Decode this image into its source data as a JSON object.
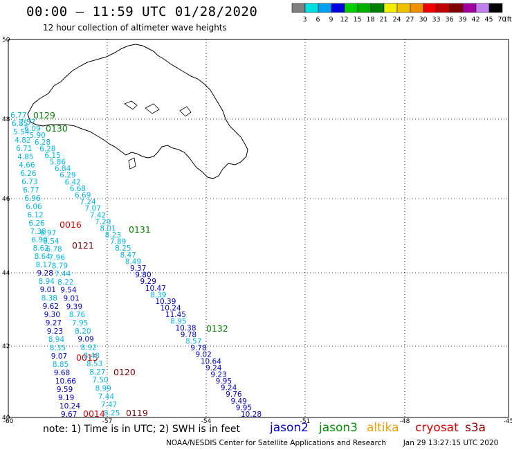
{
  "header": {
    "title": "00:00 – 11:59 UTC 01/28/2020",
    "subtitle": "12 hour collection of altimeter wave heights"
  },
  "legend": {
    "unit": "(ft)",
    "swatches": [
      {
        "label": "3",
        "color": "#808080"
      },
      {
        "label": "6",
        "color": "#00e0e0"
      },
      {
        "label": "9",
        "color": "#00a0f0"
      },
      {
        "label": "12",
        "color": "#0000e0"
      },
      {
        "label": "15",
        "color": "#00d000"
      },
      {
        "label": "18",
        "color": "#00b000"
      },
      {
        "label": "21",
        "color": "#008000"
      },
      {
        "label": "24",
        "color": "#f0f000"
      },
      {
        "label": "27",
        "color": "#f0c000"
      },
      {
        "label": "30",
        "color": "#f09000"
      },
      {
        "label": "33",
        "color": "#f00000"
      },
      {
        "label": "36",
        "color": "#c00000"
      },
      {
        "label": "39",
        "color": "#800000"
      },
      {
        "label": "42",
        "color": "#a000a0"
      },
      {
        "label": "45",
        "color": "#c080f0"
      },
      {
        "label": "70",
        "color": "#000000"
      }
    ]
  },
  "axes": {
    "lat_labels": [
      "50",
      "48",
      "46",
      "44",
      "42",
      "40"
    ],
    "lon_labels": [
      "-60",
      "-57",
      "-54",
      "-51",
      "-48",
      "-45"
    ]
  },
  "passes": [
    {
      "label": "0129",
      "color": "#008000"
    },
    {
      "label": "0130",
      "color": "#008000"
    },
    {
      "label": "0131",
      "color": "#008000"
    },
    {
      "label": "0132",
      "color": "#008000"
    },
    {
      "label": "0016",
      "color": "#e00000"
    },
    {
      "label": "0121",
      "color": "#800000"
    },
    {
      "label": "0015",
      "color": "#e00000"
    },
    {
      "label": "0120",
      "color": "#800000"
    },
    {
      "label": "0014",
      "color": "#e00000"
    },
    {
      "label": "0119",
      "color": "#800000"
    }
  ],
  "tracks": [
    {
      "name": "track-a",
      "color": "#00b8e8",
      "values": [
        "6.77",
        "6.85",
        "5.54",
        "4.82",
        "6.71",
        "4.85",
        "4.66",
        "6.26",
        "6.73",
        "6.77",
        "6.96",
        "6.06",
        "6.12",
        "6.26",
        "7.38",
        "6.90",
        "8.62",
        "8.64",
        "8.17",
        "9.28",
        "8.94",
        "9.01",
        "8.38",
        "9.62",
        "9.30",
        "9.27",
        "9.23",
        "8.94",
        "8.35",
        "9.07",
        "8.85",
        "9.68",
        "10.66",
        "9.59",
        "9.19",
        "10.24",
        "9.67"
      ]
    },
    {
      "name": "track-b",
      "color": "#00b8e8",
      "values": [
        "7.57",
        "6.09",
        "5.90",
        "6.28",
        "6.28",
        "6.15",
        "5.86",
        "6.84",
        "6.29",
        "6.42",
        "6.68",
        "6.69",
        "7.24",
        "7.07",
        "7.42",
        "7.29",
        "8.01",
        "8.23",
        "7.89",
        "8.25",
        "8.47",
        "8.49",
        "9.37",
        "9.80",
        "9.29",
        "10.47",
        "8.39",
        "10.39",
        "10.24",
        "11.45",
        "8.95",
        "10.38",
        "9.78",
        "8.57",
        "9.78",
        "9.02",
        "10.64",
        "9.24",
        "9.23",
        "9.95",
        "9.24",
        "9.76",
        "9.49",
        "9.95",
        "10.28"
      ]
    },
    {
      "name": "track-c",
      "color": "#00b8e8",
      "values": [
        "6.97",
        "6.54",
        "6.78",
        "7.96",
        "8.79",
        "7.44",
        "8.22",
        "9.54",
        "9.01",
        "9.39",
        "8.76",
        "7.95",
        "8.20",
        "9.09",
        "8.92",
        "8.48",
        "8.53",
        "8.27",
        "7.50",
        "8.99",
        "7.44",
        "7.47",
        "8.25"
      ]
    }
  ],
  "footer": {
    "note": "note: 1) Time is in UTC; 2) SWH is in feet",
    "satellites": [
      {
        "name": "jason2",
        "color": "#0000d0"
      },
      {
        "name": "jason3",
        "color": "#009000"
      },
      {
        "name": "altika",
        "color": "#f0a000"
      },
      {
        "name": "cryosat",
        "color": "#e00000"
      },
      {
        "name": "s3a",
        "color": "#900000"
      }
    ],
    "credit": "NOAA/NESDIS Center for Satellite Applications and Research",
    "timestamp": "Jan 29 13:27:15 UTC 2020"
  }
}
